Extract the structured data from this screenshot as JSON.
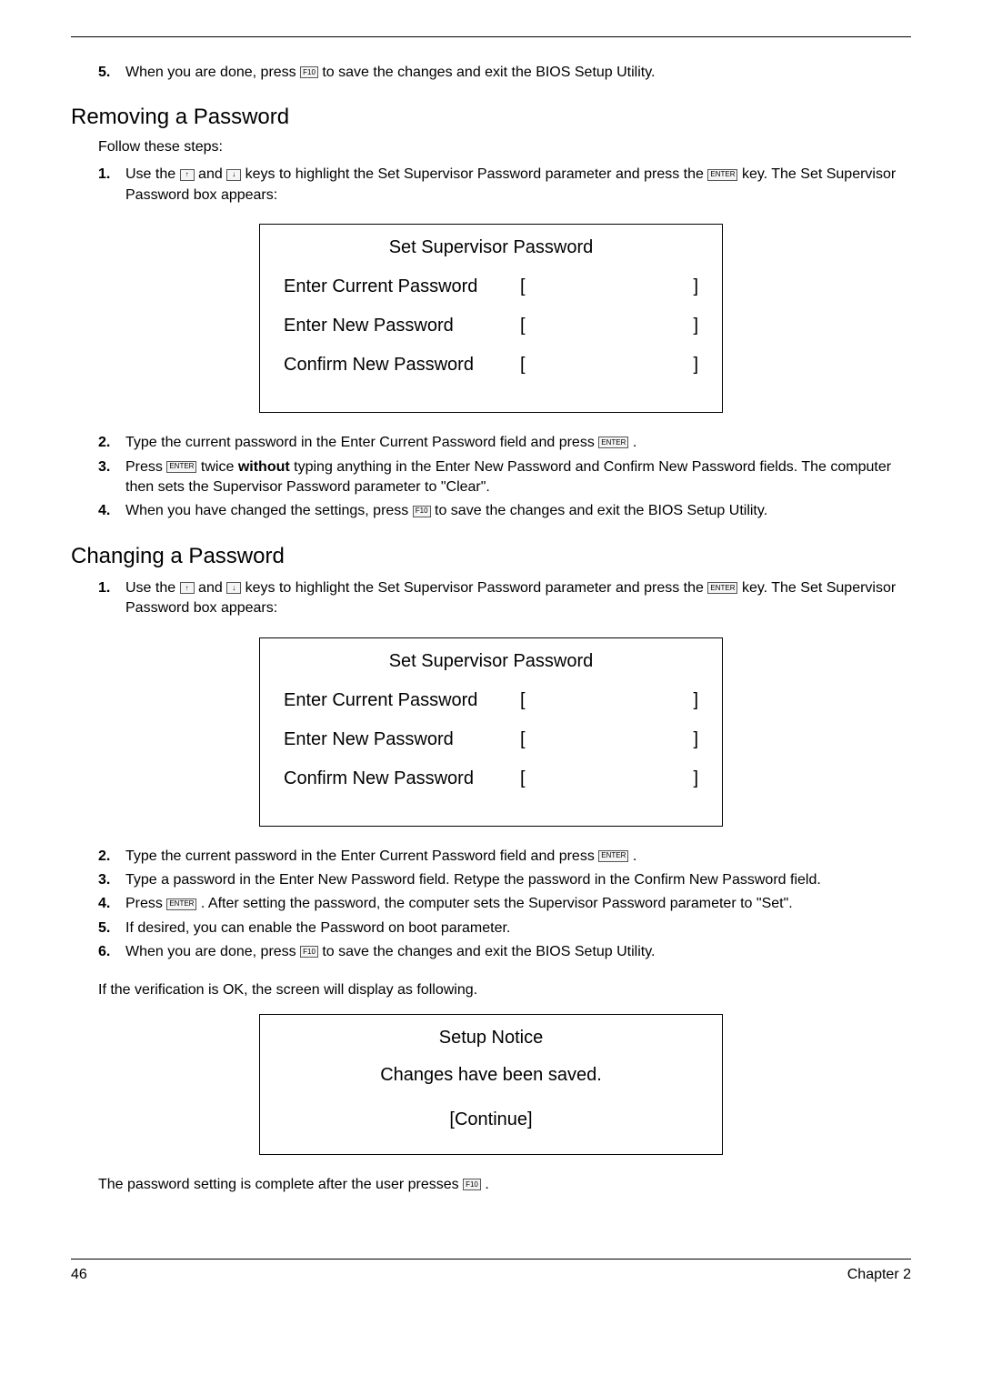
{
  "step5_top": {
    "num": "5.",
    "pre": "When you are done, press ",
    "key": "F10",
    "post": " to save the changes and exit the BIOS Setup Utility."
  },
  "removing": {
    "heading": "Removing a Password",
    "follow": "Follow these steps:",
    "step1": {
      "num": "1.",
      "p1": "Use the ",
      "k1": "↑",
      "p2": " and ",
      "k2": "↓",
      "p3": " keys to highlight the Set Supervisor Password parameter and press the ",
      "k3": "ENTER",
      "p4": " key. The Set Supervisor Password box appears:"
    },
    "dialog": {
      "title": "Set Supervisor Password",
      "r1": "Enter Current Password",
      "r2": "Enter New Password",
      "r3": "Confirm New Password"
    },
    "step2": {
      "num": "2.",
      "pre": "Type the current password in the Enter Current Password field and press ",
      "key": "ENTER",
      "post": " ."
    },
    "step3": {
      "num": "3.",
      "p1": "Press ",
      "key": "ENTER",
      "p2": " twice ",
      "bold": "without",
      "p3": " typing anything in the Enter New Password and Confirm New Password fields. The computer then sets the Supervisor Password parameter to \"Clear\"."
    },
    "step4": {
      "num": "4.",
      "pre": "When you have changed the settings, press ",
      "key": "F10",
      "post": " to save the changes and exit the BIOS Setup Utility."
    }
  },
  "changing": {
    "heading": "Changing a Password",
    "step1": {
      "num": "1.",
      "p1": "Use the ",
      "k1": "↑",
      "p2": " and ",
      "k2": "↓",
      "p3": " keys to highlight the Set Supervisor Password parameter and press the ",
      "k3": "ENTER",
      "p4": " key. The Set Supervisor Password box appears:"
    },
    "dialog": {
      "title": "Set Supervisor Password",
      "r1": "Enter Current Password",
      "r2": "Enter New Password",
      "r3": "Confirm New Password"
    },
    "step2": {
      "num": "2.",
      "pre": "Type the current password in the Enter Current Password field and press ",
      "key": "ENTER",
      "post": " ."
    },
    "step3": {
      "num": "3.",
      "text": "Type a password in the Enter New Password field. Retype the password in the Confirm New Password field."
    },
    "step4": {
      "num": "4.",
      "pre": "Press ",
      "key": "ENTER",
      "post": " . After setting the password, the computer sets the Supervisor Password parameter to \"Set\"."
    },
    "step5": {
      "num": "5.",
      "text": "If desired, you can enable the Password on boot parameter."
    },
    "step6": {
      "num": "6.",
      "pre": "When you are done, press ",
      "key": "F10",
      "post": " to save the changes and exit the BIOS Setup Utility."
    },
    "verify": "If the verification is OK, the screen will display as following.",
    "notice": {
      "title": "Setup Notice",
      "msg": "Changes have been saved.",
      "btn": "[Continue]"
    },
    "complete_pre": "The password setting is complete after the user presses ",
    "complete_key": "F10",
    "complete_post": " ."
  },
  "footer": {
    "page": "46",
    "chapter": "Chapter 2"
  }
}
